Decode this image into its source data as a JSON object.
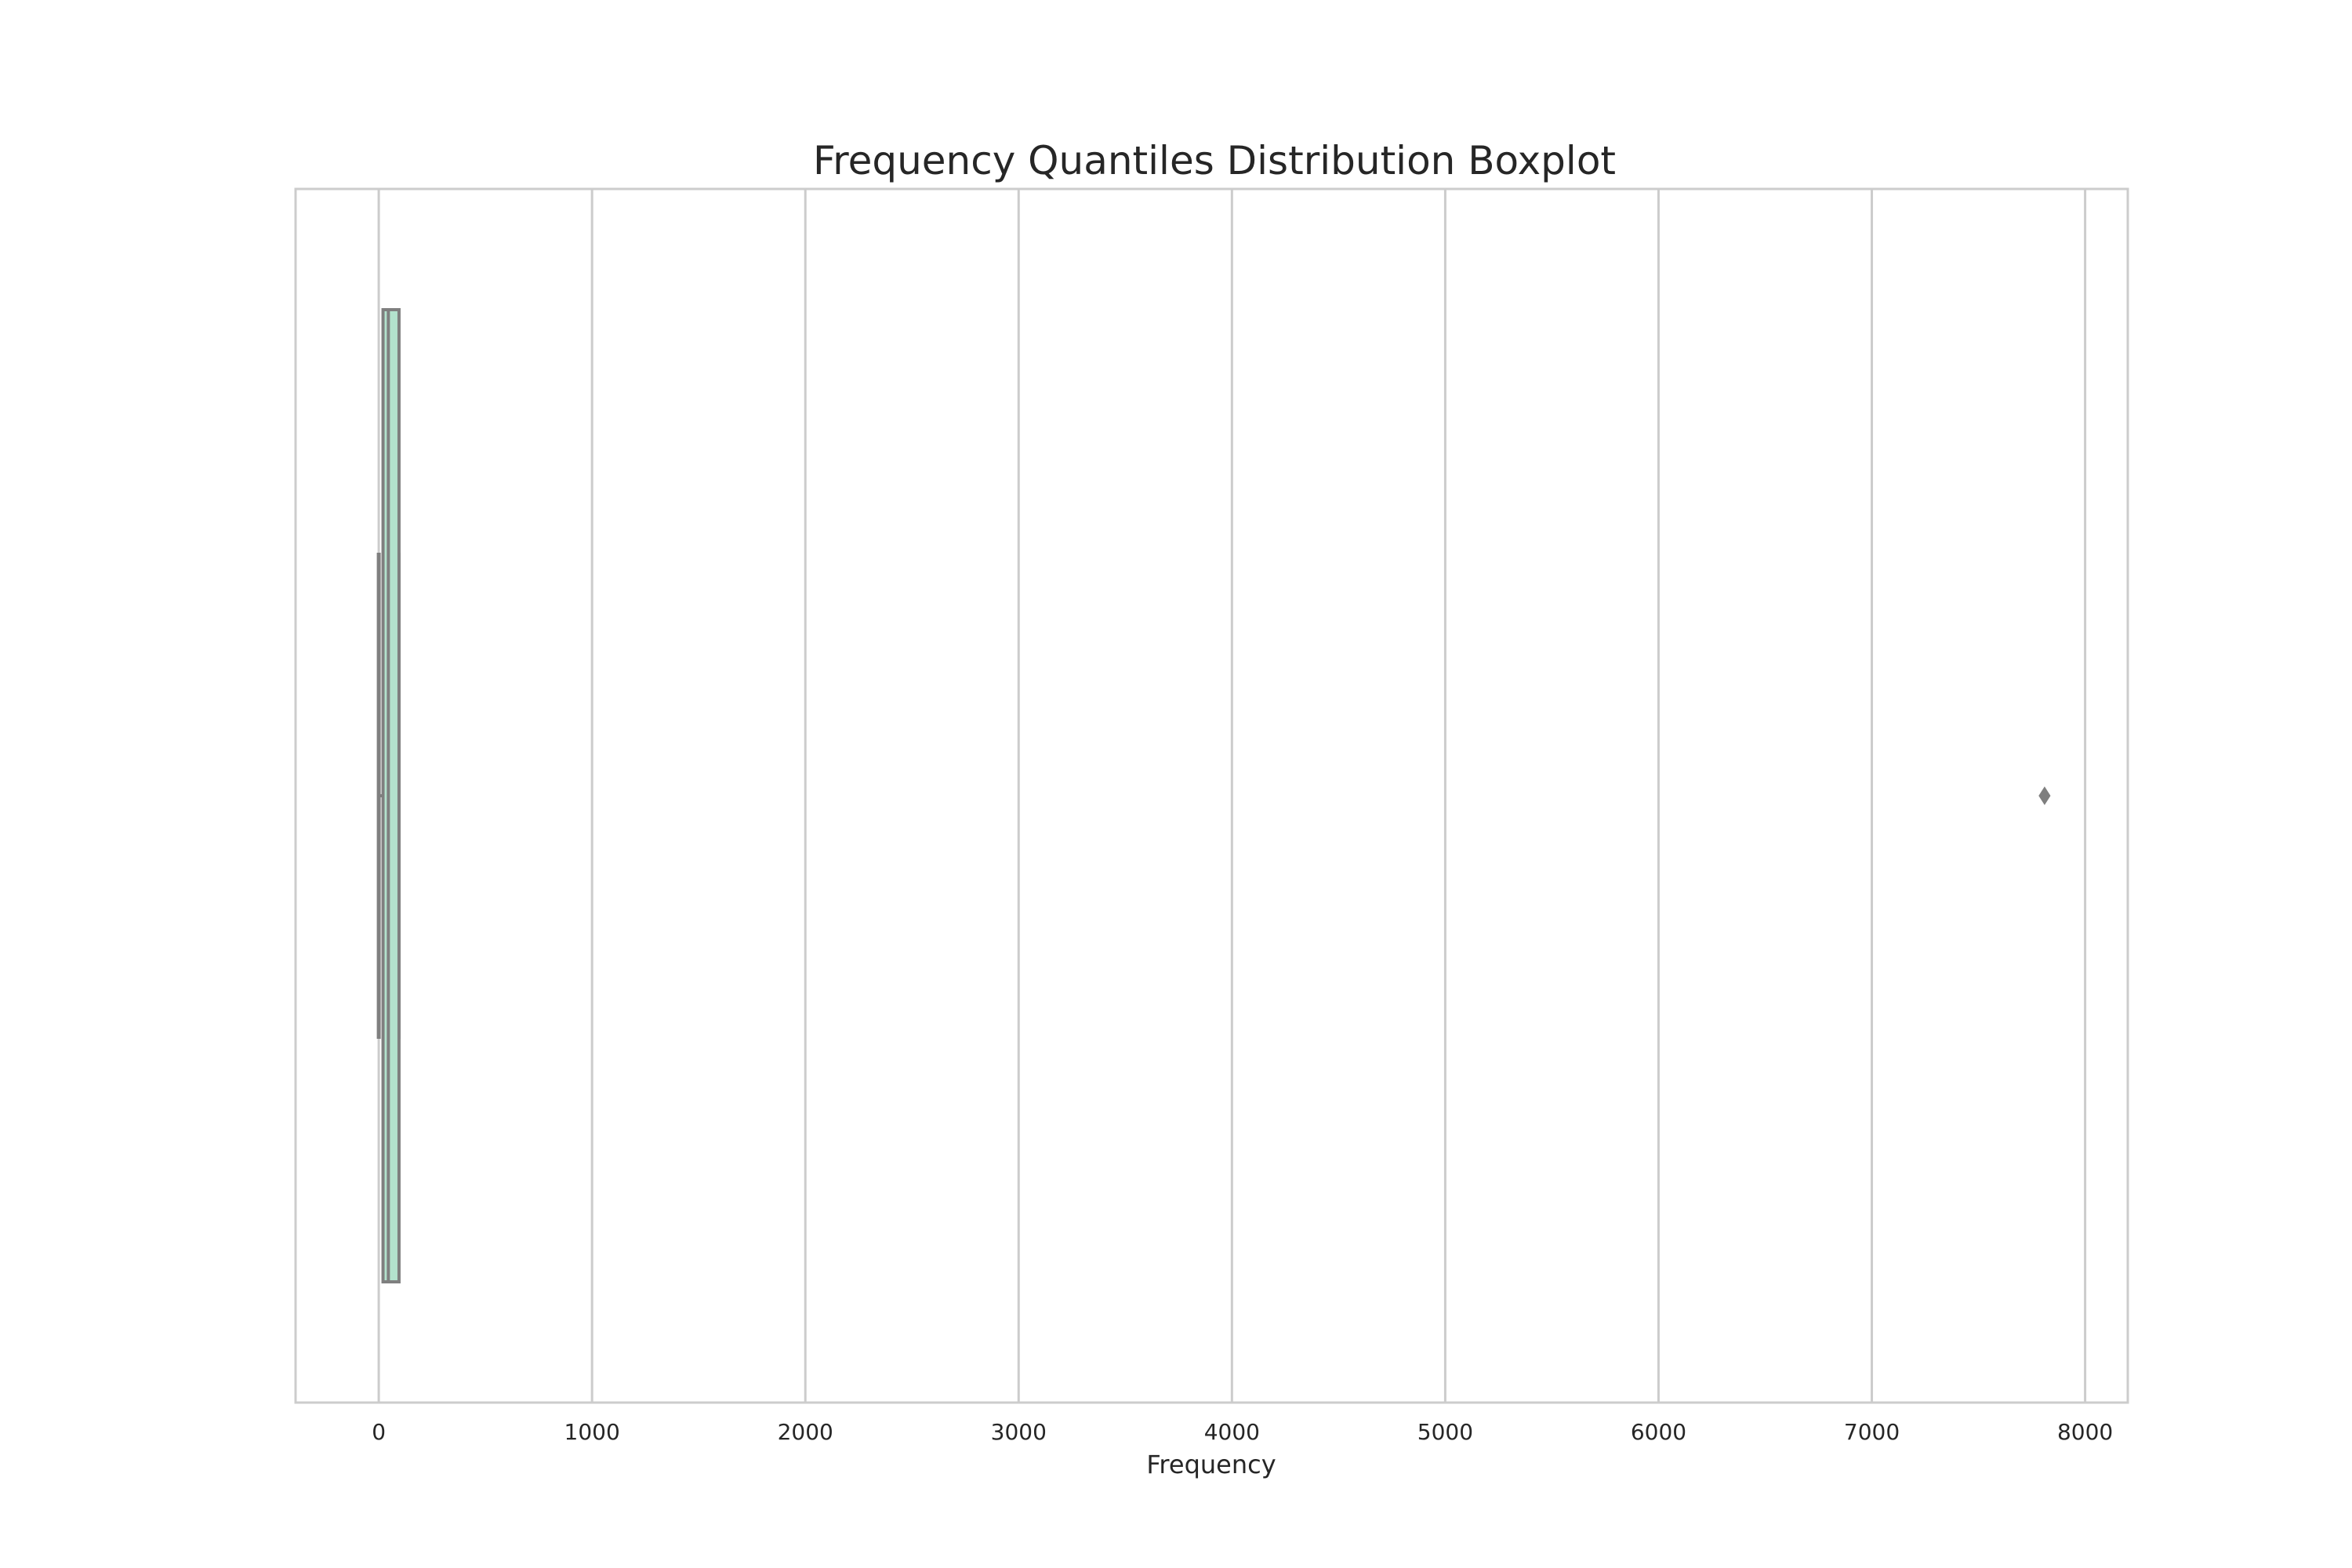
{
  "chart_data": {
    "type": "boxplot",
    "orientation": "horizontal",
    "title": "Frequency Quantiles Distribution Boxplot",
    "xlabel": "Frequency",
    "ylabel": "",
    "xlim": [
      -390,
      8200
    ],
    "xticks": [
      0,
      1000,
      2000,
      3000,
      4000,
      5000,
      6000,
      7000,
      8000
    ],
    "grid": true,
    "box": {
      "whisker_low": 0,
      "q1": 20,
      "median": 45,
      "q3": 95,
      "whisker_high": 95,
      "outliers": [
        7810
      ]
    },
    "colors": {
      "box_fill": "#b3e2cd",
      "box_edge": "#7f7f7f",
      "grid": "#cccccc",
      "frame": "#cccccc",
      "text": "#262626"
    }
  }
}
